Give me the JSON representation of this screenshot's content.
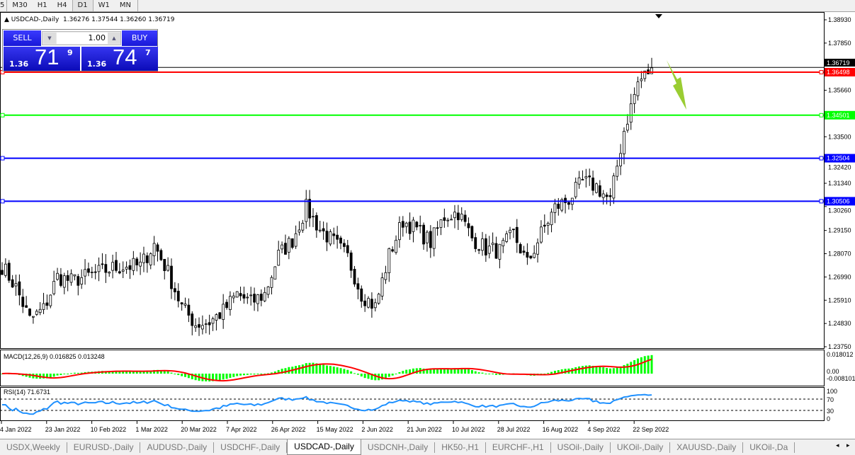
{
  "toolbar": {
    "timeframes": [
      {
        "label": "5"
      },
      {
        "label": "M30"
      },
      {
        "label": "H1"
      },
      {
        "label": "H4"
      },
      {
        "label": "D1",
        "active": true
      },
      {
        "label": "W1"
      },
      {
        "label": "MN"
      }
    ]
  },
  "chart": {
    "symbol_title": "USDCAD-,Daily",
    "ohlc": "1.36276 1.37544 1.36260 1.36719"
  },
  "trade_panel": {
    "sell_label": "SELL",
    "buy_label": "BUY",
    "lot": "1.00",
    "sell_prefix": "1.36",
    "sell_big": "71",
    "sell_sup": "9",
    "buy_prefix": "1.36",
    "buy_big": "74",
    "buy_sup": "7"
  },
  "chart_data": {
    "type": "candlestick",
    "price_axis": {
      "min": 1.2375,
      "max": 1.3893,
      "ticks": [
        "1.38930",
        "1.37850",
        "1.35660",
        "1.33500",
        "1.32420",
        "1.31340",
        "1.30260",
        "1.29150",
        "1.28070",
        "1.26990",
        "1.25910",
        "1.24830",
        "1.23750"
      ]
    },
    "current_price": {
      "value": 1.36719,
      "label": "1.36719",
      "color": "#000000"
    },
    "horizontal_lines": [
      {
        "value": 1.36498,
        "label": "1.36498",
        "color": "#ff0000"
      },
      {
        "value": 1.34501,
        "label": "1.34501",
        "color": "#00ff00"
      },
      {
        "value": 1.32504,
        "label": "1.32504",
        "color": "#0000ff"
      },
      {
        "value": 1.30506,
        "label": "1.30506",
        "color": "#0000ff"
      }
    ],
    "date_labels": [
      "4 Jan 2022",
      "23 Jan 2022",
      "10 Feb 2022",
      "1 Mar 2022",
      "20 Mar 2022",
      "7 Apr 2022",
      "26 Apr 2022",
      "15 May 2022",
      "2 Jun 2022",
      "21 Jun 2022",
      "10 Jul 2022",
      "28 Jul 2022",
      "16 Aug 2022",
      "4 Sep 2022",
      "22 Sep 2022"
    ],
    "approx_closes_every_4_bars": [
      1.275,
      1.265,
      1.25,
      1.255,
      1.27,
      1.268,
      1.27,
      1.272,
      1.274,
      1.275,
      1.275,
      1.285,
      1.272,
      1.256,
      1.248,
      1.249,
      1.254,
      1.262,
      1.258,
      1.262,
      1.28,
      1.287,
      1.302,
      1.292,
      1.286,
      1.279,
      1.262,
      1.256,
      1.28,
      1.296,
      1.292,
      1.286,
      1.298,
      1.3,
      1.288,
      1.283,
      1.282,
      1.29,
      1.276,
      1.29,
      1.302,
      1.306,
      1.314,
      1.312,
      1.305,
      1.338,
      1.36,
      1.367
    ],
    "arrow_color": "#9acd32",
    "macd": {
      "label": "MACD(12,26,9) 0.016825 0.013248",
      "ticks": [
        "0.018012",
        "0.00",
        "-0.008101"
      ],
      "histogram_color": "#00ff00",
      "signal_color": "#ff0000"
    },
    "rsi": {
      "label": "RSI(14) 71.6731",
      "ticks": [
        "100",
        "70",
        "30",
        "0"
      ],
      "levels": [
        70,
        30
      ],
      "color": "#1e90ff"
    }
  },
  "tabs": [
    {
      "label": "USDX,Weekly"
    },
    {
      "label": "EURUSD-,Daily"
    },
    {
      "label": "AUDUSD-,Daily"
    },
    {
      "label": "USDCHF-,Daily"
    },
    {
      "label": "USDCAD-,Daily",
      "active": true
    },
    {
      "label": "USDCNH-,Daily"
    },
    {
      "label": "HK50-,H1"
    },
    {
      "label": "EURCHF-,H1"
    },
    {
      "label": "USOil-,Daily"
    },
    {
      "label": "UKOil-,Daily"
    },
    {
      "label": "XAUUSD-,Daily"
    },
    {
      "label": "UKOil-,Da"
    }
  ]
}
